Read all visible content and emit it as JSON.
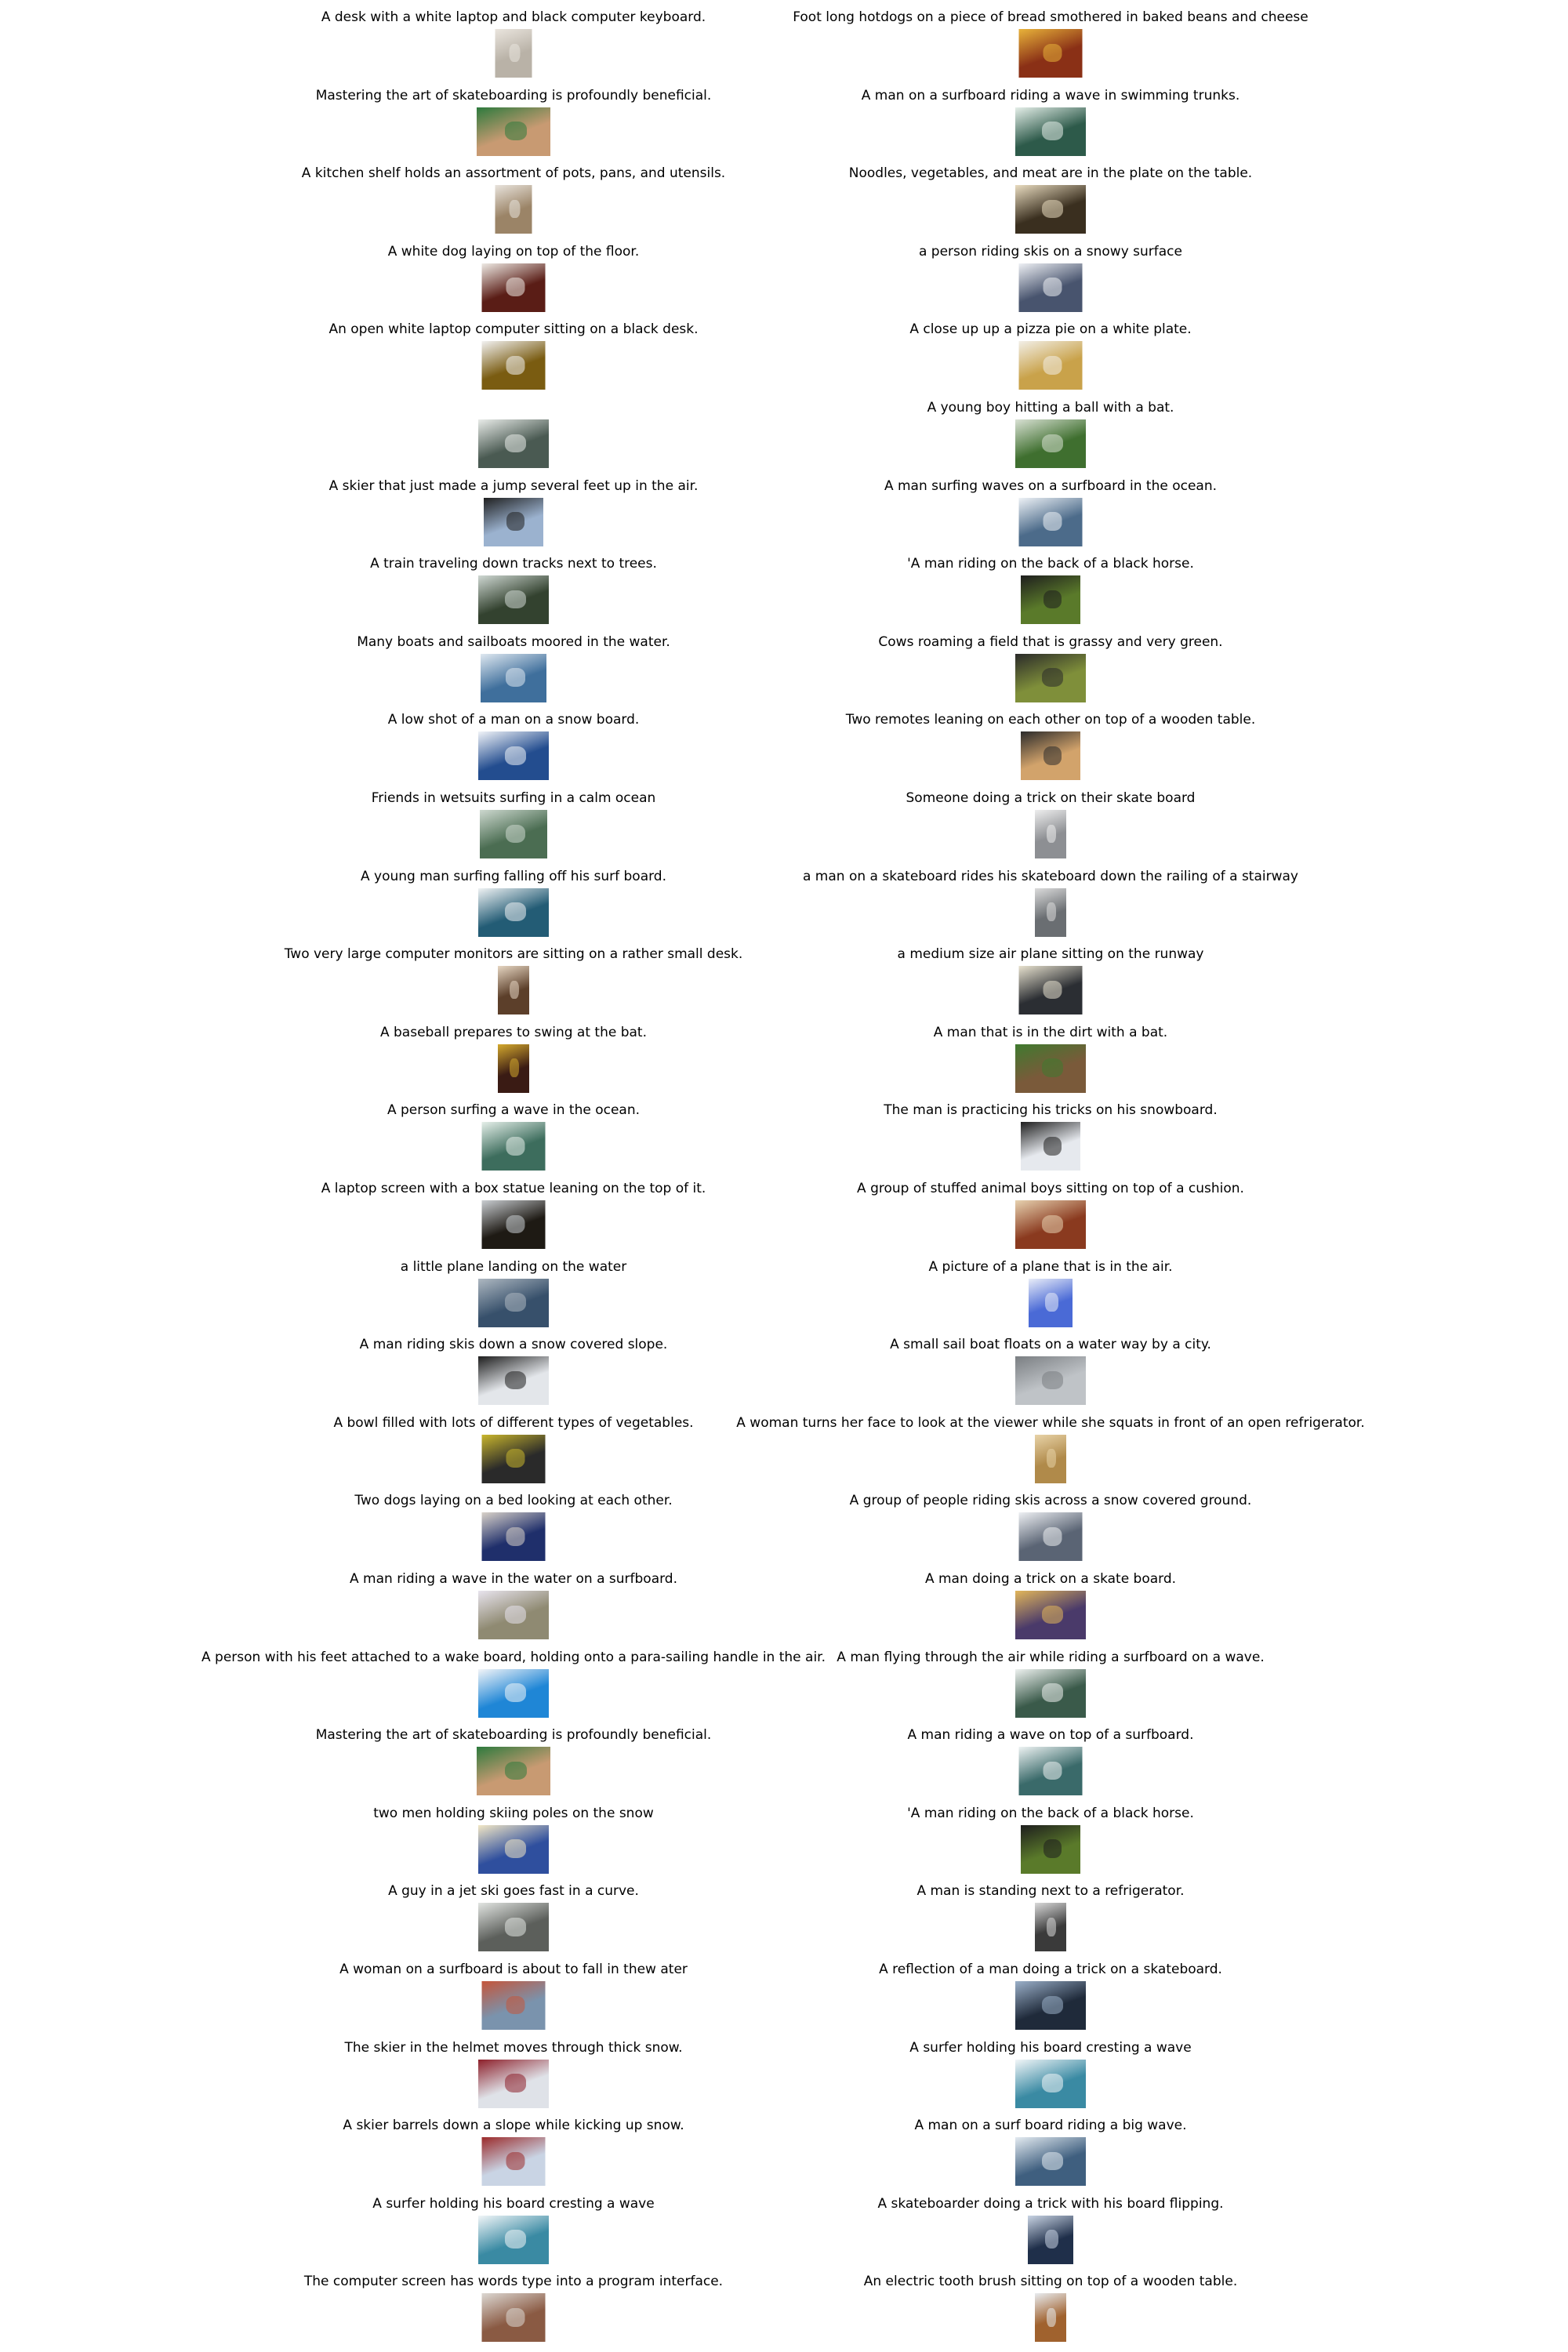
{
  "columns": [
    [
      {
        "caption": "A desk with a white laptop and black computer keyboard.",
        "w": 0.49,
        "hue": "#b9b2a7",
        "tone": "#eae5de",
        "icon": "desk-laptop-thumbnail"
      },
      {
        "caption": "Mastering the art of skateboarding is profoundly beneficial.",
        "w": 0.98,
        "hue": "#c89a72",
        "tone": "#2d7a3d",
        "icon": "skateboarding-thumbnail"
      },
      {
        "caption": "A kitchen shelf holds an assortment of pots, pans, and utensils.",
        "w": 0.49,
        "hue": "#9b8467",
        "tone": "#e8e3dc",
        "icon": "kitchen-shelf-thumbnail"
      },
      {
        "caption": "A white dog laying on top of the floor.",
        "w": 0.84,
        "hue": "#5a1d16",
        "tone": "#eeeae4",
        "icon": "white-dog-thumbnail"
      },
      {
        "caption": "An open white laptop computer sitting on a black desk.",
        "w": 0.84,
        "hue": "#7a5c11",
        "tone": "#f2f2f2",
        "icon": "open-laptop-thumbnail"
      },
      {
        "caption": "",
        "w": 0.94,
        "hue": "#4a5a52",
        "tone": "#e9ece9",
        "icon": "snowy-park-thumbnail"
      },
      {
        "caption": "A skier that just made a jump several feet up in the air.",
        "w": 0.79,
        "hue": "#9bb2cf",
        "tone": "#1f1f1f",
        "icon": "skier-jump-thumbnail"
      },
      {
        "caption": "A train traveling down tracks next to trees.",
        "w": 0.94,
        "hue": "#33422f",
        "tone": "#cfd8d3",
        "icon": "train-thumbnail"
      },
      {
        "caption": "Many boats and sailboats moored in the water.",
        "w": 0.88,
        "hue": "#3f6f9c",
        "tone": "#dfe8f0",
        "icon": "boats-thumbnail"
      },
      {
        "caption": "A low shot of a man on a snow board.",
        "w": 0.94,
        "hue": "#234d8f",
        "tone": "#f1f4f8",
        "icon": "snowboard-low-shot-thumbnail"
      },
      {
        "caption": "Friends in wetsuits surfing in a calm ocean",
        "w": 0.9,
        "hue": "#4b6d52",
        "tone": "#cdd8cf",
        "icon": "wetsuits-surfing-thumbnail"
      },
      {
        "caption": "A young man surfing falling off his surf board.",
        "w": 0.94,
        "hue": "#235c75",
        "tone": "#f0f3f4",
        "icon": "surf-fall-thumbnail"
      },
      {
        "caption": "Two very large computer monitors are sitting on a rather small desk.",
        "w": 0.42,
        "hue": "#5c3f2a",
        "tone": "#e6d6c2",
        "icon": "monitors-desk-thumbnail"
      },
      {
        "caption": "A baseball prepares to swing at the bat.",
        "w": 0.42,
        "hue": "#3a1b14",
        "tone": "#d4a92d",
        "icon": "baseball-swing-thumbnail"
      },
      {
        "caption": "A person surfing a wave in the ocean.",
        "w": 0.84,
        "hue": "#3d6d5d",
        "tone": "#e5efe9",
        "icon": "surfing-wave-thumbnail"
      },
      {
        "caption": "A laptop screen with a box statue leaning on the top of it.",
        "w": 0.84,
        "hue": "#1e1a14",
        "tone": "#c9cdd1",
        "icon": "laptop-screen-thumbnail"
      },
      {
        "caption": "a little plane landing on the water",
        "w": 0.94,
        "hue": "#37506b",
        "tone": "#aeb8c1",
        "icon": "seaplane-thumbnail"
      },
      {
        "caption": "A man riding skis down a snow covered slope.",
        "w": 0.94,
        "hue": "#e3e6ea",
        "tone": "#1d1d1d",
        "icon": "skier-slope-thumbnail"
      },
      {
        "caption": "A bowl filled with lots of different types of vegetables.",
        "w": 0.84,
        "hue": "#2a2a2a",
        "tone": "#c9b62c",
        "icon": "vegetable-bowl-thumbnail"
      },
      {
        "caption": "Two dogs laying on a bed looking at each other.",
        "w": 0.84,
        "hue": "#1f2f6b",
        "tone": "#d9d2c9",
        "icon": "dogs-bed-thumbnail"
      },
      {
        "caption": "A man riding a wave in the water on a surfboard.",
        "w": 0.94,
        "hue": "#8f8a72",
        "tone": "#e8e4ee",
        "icon": "wave-riding-thumbnail"
      },
      {
        "caption": "A person with his feet attached to a wake board, holding onto a para-sailing handle in the air.",
        "w": 0.94,
        "hue": "#1f86d6",
        "tone": "#f3f5f8",
        "icon": "wakeboard-thumbnail"
      },
      {
        "caption": "Mastering the art of skateboarding is profoundly beneficial.",
        "w": 0.98,
        "hue": "#c89a72",
        "tone": "#2d7a3d",
        "icon": "skateboarding-thumbnail-2"
      },
      {
        "caption": "two men holding skiing poles on the snow",
        "w": 0.94,
        "hue": "#2f4f9e",
        "tone": "#f2e7c5",
        "icon": "skiing-poles-thumbnail"
      },
      {
        "caption": "A guy in a jet ski goes fast in a curve.",
        "w": 0.94,
        "hue": "#5c5f5b",
        "tone": "#e2e5e2",
        "icon": "jet-ski-thumbnail"
      },
      {
        "caption": "A woman on a surfboard is about to fall in thew ater",
        "w": 0.84,
        "hue": "#7a93ad",
        "tone": "#c5553a",
        "icon": "surfboard-fall-thumbnail"
      },
      {
        "caption": "The skier in the helmet moves through thick snow.",
        "w": 0.94,
        "hue": "#dfe2e8",
        "tone": "#8d1f2a",
        "icon": "helmet-skier-thumbnail"
      },
      {
        "caption": "A skier barrels down a slope while kicking up snow.",
        "w": 0.84,
        "hue": "#c9d4e4",
        "tone": "#9b2a2a",
        "icon": "skier-barrels-thumbnail"
      },
      {
        "caption": "A surfer holding his board cresting a wave",
        "w": 0.94,
        "hue": "#3a8aa3",
        "tone": "#f2f6f8",
        "icon": "surfer-cresting-thumbnail"
      },
      {
        "caption": "The computer screen has words type into a program interface.",
        "w": 0.84,
        "hue": "#8a5a43",
        "tone": "#dcd8d3",
        "icon": "computer-screen-thumbnail"
      }
    ],
    [
      {
        "caption": "Foot long hotdogs on a piece of bread smothered in baked beans and cheese",
        "w": 0.84,
        "hue": "#8a3016",
        "tone": "#e8b33a",
        "icon": "hotdogs-thumbnail"
      },
      {
        "caption": "A man on a surfboard riding a wave in swimming trunks.",
        "w": 0.94,
        "hue": "#2d5a4a",
        "tone": "#e5efe9",
        "icon": "surfboard-trunks-thumbnail"
      },
      {
        "caption": "Noodles, vegetables, and meat are in the plate on the table.",
        "w": 0.94,
        "hue": "#3a2f1f",
        "tone": "#e9dcc0",
        "icon": "noodles-plate-thumbnail"
      },
      {
        "caption": "a person riding skis on a snowy surface",
        "w": 0.84,
        "hue": "#48546e",
        "tone": "#eef0f4",
        "icon": "skis-snowy-thumbnail"
      },
      {
        "caption": "A close up up a pizza pie on a white plate.",
        "w": 0.84,
        "hue": "#c9a24a",
        "tone": "#f2efe8",
        "icon": "pizza-thumbnail"
      },
      {
        "caption": "A young boy hitting a ball with a bat.",
        "w": 0.94,
        "hue": "#3f6f2f",
        "tone": "#d9e1d4",
        "icon": "boy-bat-thumbnail"
      },
      {
        "caption": "A man surfing waves on a surfboard in the ocean.",
        "w": 0.84,
        "hue": "#4c6b8a",
        "tone": "#eef2f6",
        "icon": "surfing-ocean-thumbnail"
      },
      {
        "caption": "'A man riding on the back of a black horse.",
        "w": 0.79,
        "hue": "#5a7a2a",
        "tone": "#1e1e1e",
        "icon": "black-horse-thumbnail"
      },
      {
        "caption": "Cows roaming a field that is grassy and very green.",
        "w": 0.94,
        "hue": "#7f8f3a",
        "tone": "#2a2a2a",
        "icon": "cows-field-thumbnail"
      },
      {
        "caption": "Two remotes leaning on each other on top of a wooden table.",
        "w": 0.79,
        "hue": "#d2a36b",
        "tone": "#2b2b2b",
        "icon": "remotes-thumbnail"
      },
      {
        "caption": "Someone doing a trick on their skate board",
        "w": 0.42,
        "hue": "#8d8f93",
        "tone": "#eeeeee",
        "icon": "skate-trick-thumbnail"
      },
      {
        "caption": "a man on a skateboard rides his skateboard down the railing of a stairway",
        "w": 0.42,
        "hue": "#6a6e72",
        "tone": "#dcdcdc",
        "icon": "stair-railing-thumbnail"
      },
      {
        "caption": "a medium size air plane sitting on the runway",
        "w": 0.84,
        "hue": "#2b2e33",
        "tone": "#e8e2cf",
        "icon": "runway-plane-thumbnail"
      },
      {
        "caption": "A man that is in the dirt with a bat.",
        "w": 0.94,
        "hue": "#7a5a3a",
        "tone": "#3f7a2f",
        "icon": "dirt-bat-thumbnail"
      },
      {
        "caption": "The man is practicing his tricks on his snowboard.",
        "w": 0.79,
        "hue": "#e6e9ee",
        "tone": "#1e1e1e",
        "icon": "snowboard-tricks-thumbnail"
      },
      {
        "caption": "A group of stuffed animal boys sitting on top of a cushion.",
        "w": 0.94,
        "hue": "#8a3a1f",
        "tone": "#e7d2b0",
        "icon": "stuffed-animals-thumbnail"
      },
      {
        "caption": "A picture of a plane that is in the air.",
        "w": 0.58,
        "hue": "#4a6ad6",
        "tone": "#e9edf8",
        "icon": "plane-air-thumbnail"
      },
      {
        "caption": "A small sail boat floats on a water way by a city.",
        "w": 0.94,
        "hue": "#bfc3c7",
        "tone": "#7a7e82",
        "icon": "sailboat-city-thumbnail"
      },
      {
        "caption": "A woman turns her face to look at the viewer while she squats in front of an open refrigerator.",
        "w": 0.42,
        "hue": "#b08a4a",
        "tone": "#e8d3a8",
        "icon": "refrigerator-woman-thumbnail"
      },
      {
        "caption": "A group of people riding skis across a snow covered ground.",
        "w": 0.84,
        "hue": "#5a6474",
        "tone": "#eef0f3",
        "icon": "ski-group-thumbnail"
      },
      {
        "caption": "A man doing a trick on a skate board.",
        "w": 0.94,
        "hue": "#4a3a6a",
        "tone": "#e2b65a",
        "icon": "skate-trick-dusk-thumbnail"
      },
      {
        "caption": "A man flying through the air while riding a surfboard on a wave.",
        "w": 0.94,
        "hue": "#3a5a4a",
        "tone": "#eef2f0",
        "icon": "surfboard-air-thumbnail"
      },
      {
        "caption": "A man riding a wave on top of a surfboard.",
        "w": 0.84,
        "hue": "#3a6a6a",
        "tone": "#eef3f3",
        "icon": "wave-top-thumbnail"
      },
      {
        "caption": "'A man riding on the back of a black horse.",
        "w": 0.79,
        "hue": "#5a7a2a",
        "tone": "#1e1e1e",
        "icon": "black-horse-thumbnail-2"
      },
      {
        "caption": "A man is standing next to a refrigerator.",
        "w": 0.42,
        "hue": "#3a3a3a",
        "tone": "#d9d9d9",
        "icon": "man-refrigerator-thumbnail"
      },
      {
        "caption": "A reflection of a man doing a trick on a skateboard.",
        "w": 0.94,
        "hue": "#1f2a3a",
        "tone": "#9bb0c9",
        "icon": "skateboard-reflection-thumbnail"
      },
      {
        "caption": "A surfer holding his board cresting a wave",
        "w": 0.94,
        "hue": "#3a8aa3",
        "tone": "#f2f6f8",
        "icon": "surfer-cresting-thumbnail-2"
      },
      {
        "caption": "A man on a surf board riding a big wave.",
        "w": 0.94,
        "hue": "#3f5f7f",
        "tone": "#e4ebf1",
        "icon": "big-wave-thumbnail"
      },
      {
        "caption": "A skateboarder doing a trick with his board flipping.",
        "w": 0.6,
        "hue": "#1f2f4a",
        "tone": "#c9d4e4",
        "icon": "board-flip-thumbnail"
      },
      {
        "caption": "An electric tooth brush sitting on top of a wooden table.",
        "w": 0.42,
        "hue": "#a0622e",
        "tone": "#e8ecf0",
        "icon": "toothbrush-thumbnail"
      }
    ]
  ]
}
